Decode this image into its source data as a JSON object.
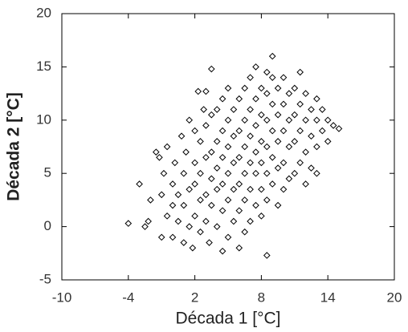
{
  "chart_data": {
    "type": "scatter",
    "xlabel": "Década 1 [°C]",
    "ylabel": "Década 2 [°C]",
    "xlim": [
      -10,
      20
    ],
    "xticks": [
      -10,
      -4,
      2,
      8,
      14,
      20
    ],
    "ylim": [
      -5,
      20
    ],
    "yticks": [
      -5,
      0,
      5,
      10,
      15,
      20
    ],
    "marker": "diamond",
    "color": "#000000",
    "x": [
      -4,
      -3,
      -2.5,
      -2.2,
      -2,
      -1.5,
      -1.2,
      -1,
      -1,
      -0.8,
      -0.5,
      -0.5,
      0,
      0,
      0,
      0.2,
      0.5,
      0.5,
      0.8,
      1,
      1,
      1,
      1.2,
      1.5,
      1.5,
      1.5,
      1.8,
      2,
      2,
      2,
      2,
      2.3,
      2.5,
      2.5,
      2.5,
      2.5,
      2.8,
      3,
      3,
      3,
      3,
      3,
      3.5,
      3.3,
      3.5,
      3.5,
      3.5,
      3.5,
      4,
      4,
      4,
      4,
      4,
      4.5,
      4.5,
      4.5,
      4.5,
      4.5,
      4.5,
      5,
      5,
      5,
      5,
      5,
      5,
      5.5,
      5.5,
      5.5,
      5.5,
      5.5,
      6,
      6,
      6,
      6,
      6,
      6,
      6.5,
      6.5,
      6.5,
      6.5,
      6.5,
      6.5,
      7,
      7,
      7,
      7,
      7,
      7,
      7.5,
      7.5,
      7.5,
      7.5,
      7.5,
      7.5,
      8,
      8,
      8,
      8,
      8,
      8,
      8.5,
      8.5,
      8.5,
      8.5,
      8.5,
      8.5,
      8.5,
      9,
      9,
      9,
      9,
      9,
      9,
      9.5,
      9.5,
      9.5,
      9.5,
      9.5,
      10,
      10,
      10,
      10,
      10,
      10.5,
      10.5,
      10.5,
      10.5,
      11,
      11,
      11,
      11,
      11.5,
      11.5,
      11.5,
      11.5,
      12,
      12,
      12,
      12,
      12.5,
      12.5,
      12.5,
      13,
      13,
      13,
      13,
      13.5,
      13.5,
      14,
      14,
      14.5,
      15
    ],
    "y": [
      0.3,
      4,
      0,
      0.5,
      2.5,
      7,
      6.5,
      -1,
      3,
      5,
      1,
      7.5,
      -1,
      2,
      4,
      6,
      0.5,
      3,
      8.5,
      -1.5,
      2,
      5,
      7,
      0,
      3.5,
      10,
      -2,
      1,
      4,
      6,
      9,
      12.7,
      -0.5,
      2.5,
      5,
      8,
      11,
      0.5,
      3,
      6.5,
      9.5,
      12.7,
      14.8,
      -1.5,
      2,
      4.5,
      7,
      10.5,
      0,
      3.5,
      5.5,
      8,
      11,
      -2.3,
      1.5,
      4,
      6.5,
      9,
      12,
      -1,
      2.5,
      5,
      7.5,
      10,
      13,
      0.5,
      3.5,
      6,
      8.5,
      11,
      -2,
      1.5,
      4,
      6.5,
      9,
      12,
      -0.5,
      2.5,
      5,
      7.5,
      10,
      13,
      0.5,
      3.5,
      6,
      8.5,
      11,
      14,
      15,
      2,
      5,
      7,
      9.5,
      12,
      1,
      3.5,
      6,
      8,
      10.5,
      13,
      -2.7,
      2.5,
      5,
      7.5,
      10,
      12.5,
      14.5,
      16,
      4,
      6.5,
      9,
      11.5,
      14,
      2,
      5.5,
      8,
      10.5,
      13,
      3.5,
      6,
      9,
      11.5,
      14,
      4.5,
      7.5,
      10,
      12.5,
      5,
      8,
      10.5,
      13,
      6,
      9,
      11.5,
      14.5,
      4,
      7,
      10,
      12.5,
      5.5,
      8.5,
      11,
      5,
      7.5,
      10,
      12,
      9,
      11,
      8,
      10,
      9.5,
      9.2
    ]
  }
}
